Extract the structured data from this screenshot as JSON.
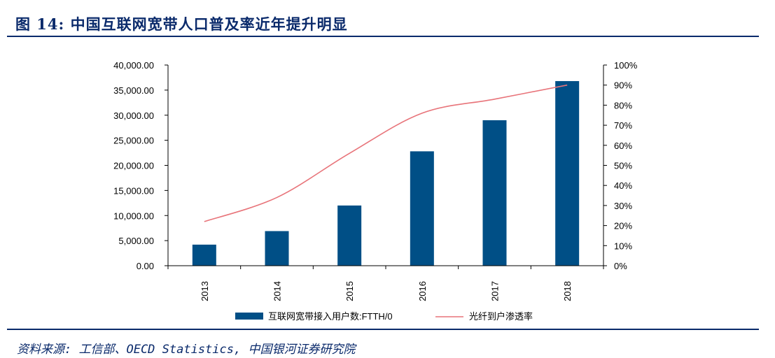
{
  "figure": {
    "title": "图 14:  中国互联网宽带人口普及率近年提升明显",
    "source": "资料来源: 工信部、OECD Statistics, 中国银河证券研究院"
  },
  "colors": {
    "bar": "#004f86",
    "line": "#e8747a",
    "title": "#0a2a6b",
    "axis": "#000000"
  },
  "chart_data": {
    "type": "bar",
    "categories": [
      "2013",
      "2014",
      "2015",
      "2016",
      "2017",
      "2018"
    ],
    "series": [
      {
        "name": "互联网宽带接入用户数:FTTH/0",
        "type": "bar",
        "axis": "left",
        "values": [
          4200,
          6900,
          12000,
          22800,
          29000,
          36800
        ]
      },
      {
        "name": "光纤到户渗透率",
        "type": "line",
        "axis": "right",
        "values": [
          0.22,
          0.34,
          0.56,
          0.76,
          0.83,
          0.9
        ]
      }
    ],
    "left_axis": {
      "ylim": [
        0,
        40000
      ],
      "ticks": [
        "0.00",
        "5,000.00",
        "10,000.00",
        "15,000.00",
        "20,000.00",
        "25,000.00",
        "30,000.00",
        "35,000.00",
        "40,000.00"
      ]
    },
    "right_axis": {
      "ylim": [
        0,
        1
      ],
      "ticks": [
        "0%",
        "10%",
        "20%",
        "30%",
        "40%",
        "50%",
        "60%",
        "70%",
        "80%",
        "90%",
        "100%"
      ]
    },
    "grid": false,
    "legend_position": "bottom"
  }
}
